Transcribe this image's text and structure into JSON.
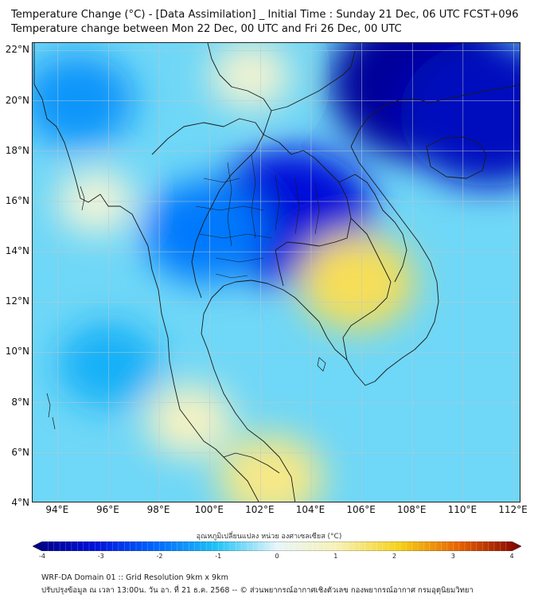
{
  "header": {
    "title_line1": "Temperature Change (°C) - [Data Assimilation] _ Initial Time : Sunday 21 Dec, 06 UTC FCST+096",
    "title_line2": "Temperature change between Mon 22 Dec, 00 UTC and Fri 26 Dec, 00 UTC"
  },
  "map": {
    "lat_labels": [
      "22°N",
      "20°N",
      "18°N",
      "16°N",
      "14°N",
      "12°N",
      "10°N",
      "8°N",
      "6°N",
      "4°N"
    ],
    "lon_labels": [
      "94°E",
      "96°E",
      "98°E",
      "100°E",
      "102°E",
      "104°E",
      "106°E",
      "108°E",
      "110°E",
      "112°E"
    ],
    "lat_range": [
      4,
      22.3
    ],
    "lon_range": [
      93,
      112.3
    ],
    "field_regions": [
      {
        "name": "strong-cooling-north-vietnam",
        "lon": 108.5,
        "lat": 20.7,
        "value": -3.7
      },
      {
        "name": "strong-cooling-south-china-sea-north",
        "lon": 111,
        "lat": 19.5,
        "value": -3.3
      },
      {
        "name": "cooling-northeast-thailand",
        "lon": 103.2,
        "lat": 15.4,
        "value": -3.0
      },
      {
        "name": "cooling-central-thailand",
        "lon": 99.8,
        "lat": 14.8,
        "value": -1.8
      },
      {
        "name": "warming-cambodia",
        "lon": 105.8,
        "lat": 12.8,
        "value": 1.6
      },
      {
        "name": "warming-malay-peninsula-south",
        "lon": 102.4,
        "lat": 5.0,
        "value": 1.3
      },
      {
        "name": "warming-peninsula-west-coast",
        "lon": 99.2,
        "lat": 7.3,
        "value": 0.8
      },
      {
        "name": "warming-north-myanmar",
        "lon": 101.6,
        "lat": 21.0,
        "value": 0.6
      },
      {
        "name": "warming-central-myanmar",
        "lon": 95.5,
        "lat": 16.0,
        "value": 0.5
      },
      {
        "name": "cooling-bay-of-bengal",
        "lon": 94.8,
        "lat": 20.0,
        "value": -1.5
      },
      {
        "name": "cooling-andaman-sea",
        "lon": 96.0,
        "lat": 9.5,
        "value": -1.2
      }
    ]
  },
  "colorbar": {
    "title": "อุณหภูมิเปลี่ยนแปลง หน่วย องศาเซลเซียส (°C)",
    "tick_labels": [
      "-4",
      "-3",
      "-2",
      "-1",
      "0",
      "1",
      "2",
      "3",
      "4"
    ],
    "range": [
      -4,
      4
    ],
    "colors": [
      "#00007f",
      "#0010d9",
      "#0066ff",
      "#1fc3f5",
      "#e8f6fb",
      "#f7f1b5",
      "#f5d21a",
      "#e66000",
      "#7f0000"
    ]
  },
  "footer": {
    "line1": "WRF-DA Domain 01 :: Grid Resolution 9km x 9km",
    "line2": "ปรับปรุงข้อมูล ณ เวลา 13:00น. วัน อา. ที่ 21 ธ.ค. 2568 -- © ส่วนพยากรณ์อากาศเชิงตัวเลข กองพยากรณ์อากาศ กรมอุตุนิยมวิทยา"
  }
}
